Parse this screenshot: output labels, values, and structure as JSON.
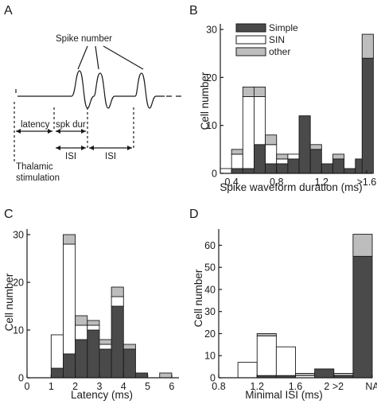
{
  "panels": {
    "A": "A",
    "B": "B",
    "C": "C",
    "D": "D"
  },
  "diagram": {
    "spike_number": "Spike number",
    "latency": "latency",
    "spk_dur": "spk dur",
    "isi_1": "ISI",
    "isi_2": "ISI",
    "stim_line1": "Thalamic",
    "stim_line2": "stimulation"
  },
  "legend": {
    "simple": "Simple",
    "sin": "SIN",
    "other": "other"
  },
  "colors": {
    "simple": "#4a4a4a",
    "sin": "#ffffff",
    "other": "#bdbdbd",
    "stroke": "#1a1a1a"
  },
  "chart_data": [
    {
      "panel": "B",
      "type": "bar",
      "stacked": true,
      "title": "",
      "xlabel": "Spike waveform duration (ms)",
      "ylabel": "Cell number",
      "xlim": [
        0.3,
        1.65
      ],
      "ylim": [
        0,
        31
      ],
      "bin_width": 0.1,
      "x": [
        0.35,
        0.45,
        0.55,
        0.65,
        0.75,
        0.85,
        0.95,
        1.05,
        1.15,
        1.25,
        1.35,
        1.45,
        1.55,
        1.61
      ],
      "xticks": [
        0.4,
        0.8,
        1.2,
        1.6
      ],
      "xtick_labels": [
        "0.4",
        "0.8",
        "1.2",
        ">1.6"
      ],
      "yticks": [
        0,
        10,
        20,
        30
      ],
      "series": [
        {
          "name": "Simple",
          "values": [
            0,
            1,
            1,
            6,
            2,
            2,
            3,
            12,
            5,
            2,
            3,
            1,
            3,
            24
          ]
        },
        {
          "name": "SIN",
          "values": [
            1,
            3,
            15,
            10,
            4,
            1,
            1,
            0,
            0,
            0,
            0,
            0,
            0,
            0
          ]
        },
        {
          "name": "other",
          "values": [
            0,
            1,
            2,
            2,
            2,
            1,
            0,
            0,
            1,
            0,
            1,
            0,
            0,
            5
          ]
        }
      ]
    },
    {
      "panel": "C",
      "type": "bar",
      "stacked": true,
      "title": "",
      "xlabel": "Latency (ms)",
      "ylabel": "Cell number",
      "xlim": [
        0,
        6.3
      ],
      "ylim": [
        0,
        31
      ],
      "bin_width": 0.5,
      "x": [
        1.25,
        1.75,
        2.25,
        2.75,
        3.25,
        3.75,
        4.25,
        4.75,
        5.75
      ],
      "xticks": [
        0,
        1,
        2,
        3,
        4,
        5,
        6
      ],
      "xtick_labels": [
        "0",
        "1",
        "2",
        "3",
        "4",
        "5",
        "6"
      ],
      "yticks": [
        0,
        10,
        20,
        30
      ],
      "series": [
        {
          "name": "Simple",
          "values": [
            2,
            5,
            8,
            10,
            6,
            15,
            6,
            1,
            0
          ]
        },
        {
          "name": "SIN",
          "values": [
            7,
            23,
            3,
            1,
            1,
            2,
            0,
            0,
            0
          ]
        },
        {
          "name": "other",
          "values": [
            0,
            2,
            2,
            1,
            1,
            2,
            1,
            0,
            1
          ]
        }
      ]
    },
    {
      "panel": "D",
      "type": "bar",
      "stacked": true,
      "title": "",
      "xlabel": "Minimal ISI (ms)",
      "ylabel": "Cell number",
      "xlim": [
        0.8,
        2.4
      ],
      "ylim": [
        0,
        67
      ],
      "bin_width": 0.2,
      "x": [
        1.1,
        1.3,
        1.5,
        1.7,
        1.9,
        2.1,
        2.3
      ],
      "xticks": [
        0.8,
        1.2,
        1.6,
        2.0,
        2.4
      ],
      "xtick_labels": [
        "0.8",
        "1.2",
        "1.6",
        "2 >2",
        "NA"
      ],
      "yticks": [
        0,
        10,
        20,
        30,
        40,
        50,
        60
      ],
      "series": [
        {
          "name": "Simple",
          "values": [
            0,
            1,
            1,
            0,
            4,
            1,
            55
          ]
        },
        {
          "name": "SIN",
          "values": [
            7,
            18,
            13,
            1,
            0,
            0,
            0
          ]
        },
        {
          "name": "other",
          "values": [
            0,
            1,
            0,
            1,
            0,
            1,
            10
          ]
        }
      ]
    }
  ]
}
